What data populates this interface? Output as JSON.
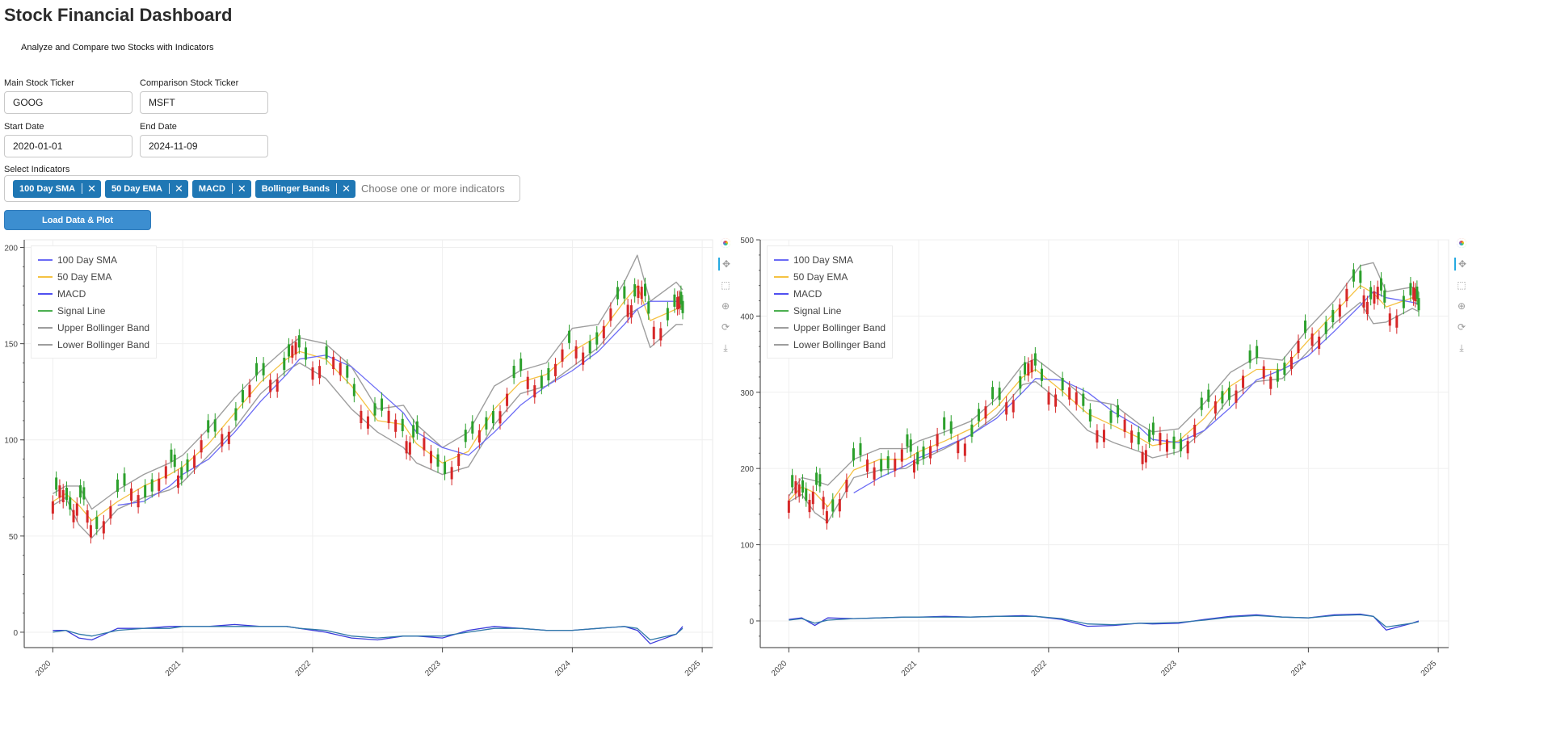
{
  "header": {
    "title": "Stock Financial Dashboard",
    "subtitle": "Analyze and Compare two Stocks with Indicators"
  },
  "form": {
    "main_ticker_label": "Main Stock Ticker",
    "main_ticker_value": "GOOG",
    "comparison_ticker_label": "Comparison Stock Ticker",
    "comparison_ticker_value": "MSFT",
    "start_date_label": "Start Date",
    "start_date_value": "2020-01-01",
    "end_date_label": "End Date",
    "end_date_value": "2024-11-09",
    "indicators_label": "Select Indicators",
    "indicators": [
      "100 Day SMA",
      "50 Day EMA",
      "MACD",
      "Bollinger Bands"
    ],
    "indicators_placeholder": "Choose one or more indicators",
    "load_button_label": "Load Data & Plot"
  },
  "legend_items": [
    {
      "label": "100 Day SMA",
      "color": "#6b6bf5"
    },
    {
      "label": "50 Day EMA",
      "color": "#f5c242"
    },
    {
      "label": "MACD",
      "color": "#5050f0"
    },
    {
      "label": "Signal Line",
      "color": "#4caf50"
    },
    {
      "label": "Upper Bollinger Band",
      "color": "#9e9e9e"
    },
    {
      "label": "Lower Bollinger Band",
      "color": "#9e9e9e"
    }
  ],
  "chart_data": [
    {
      "type": "line",
      "ticker": "GOOG",
      "x": [
        2020.0,
        2020.1,
        2020.2,
        2020.3,
        2020.5,
        2020.7,
        2020.9,
        2021.0,
        2021.2,
        2021.4,
        2021.6,
        2021.8,
        2021.9,
        2022.1,
        2022.3,
        2022.5,
        2022.7,
        2022.8,
        2023.0,
        2023.2,
        2023.4,
        2023.6,
        2023.8,
        2024.0,
        2024.2,
        2024.4,
        2024.5,
        2024.6,
        2024.8,
        2024.85
      ],
      "ylim": [
        -8,
        204
      ],
      "xlim": [
        2019.78,
        2025.08
      ],
      "xticks": [
        "2020",
        "2021",
        "2022",
        "2023",
        "2024",
        "2025"
      ],
      "yticks": [
        "0",
        "50",
        "100",
        "150",
        "200"
      ],
      "series": [
        {
          "name": "Upper Bollinger Band",
          "values": [
            72,
            76,
            76,
            64,
            74,
            82,
            88,
            92,
            106,
            122,
            136,
            148,
            153,
            150,
            138,
            116,
            118,
            108,
            96,
            104,
            128,
            136,
            140,
            158,
            160,
            182,
            196,
            172,
            182,
            178
          ]
        },
        {
          "name": "Lower Bollinger Band",
          "values": [
            66,
            70,
            56,
            49,
            64,
            70,
            74,
            78,
            92,
            106,
            124,
            136,
            140,
            132,
            116,
            104,
            96,
            88,
            82,
            86,
            108,
            124,
            128,
            138,
            148,
            164,
            168,
            148,
            160,
            160
          ]
        },
        {
          "name": "50 Day EMA",
          "values": [
            68,
            72,
            66,
            58,
            68,
            76,
            82,
            86,
            98,
            114,
            130,
            142,
            146,
            142,
            128,
            110,
            108,
            98,
            88,
            94,
            116,
            130,
            134,
            146,
            154,
            172,
            180,
            162,
            168,
            170
          ]
        },
        {
          "name": "100 Day SMA",
          "values": [
            null,
            null,
            null,
            null,
            66,
            68,
            76,
            82,
            90,
            104,
            120,
            134,
            142,
            144,
            138,
            126,
            114,
            104,
            96,
            92,
            104,
            118,
            128,
            136,
            146,
            160,
            168,
            172,
            172,
            170
          ]
        },
        {
          "name": "MACD",
          "values": [
            1,
            1,
            -3,
            -4,
            2,
            2,
            3,
            3,
            3,
            4,
            3,
            3,
            2,
            0,
            -3,
            -4,
            -2,
            -2,
            -3,
            1,
            3,
            2,
            1,
            1,
            2,
            3,
            1,
            -6,
            -1,
            3
          ]
        },
        {
          "name": "Signal Line",
          "values": [
            0,
            1,
            -1,
            -2,
            1,
            2,
            2,
            3,
            3,
            3,
            3,
            3,
            2,
            1,
            -2,
            -3,
            -2,
            -2,
            -2,
            0,
            2,
            2,
            1,
            1,
            2,
            3,
            2,
            -4,
            -1,
            2
          ]
        }
      ]
    },
    {
      "type": "line",
      "ticker": "MSFT",
      "x": [
        2020.0,
        2020.1,
        2020.2,
        2020.3,
        2020.5,
        2020.7,
        2020.9,
        2021.0,
        2021.2,
        2021.4,
        2021.6,
        2021.8,
        2021.9,
        2022.1,
        2022.3,
        2022.5,
        2022.7,
        2022.8,
        2023.0,
        2023.2,
        2023.4,
        2023.6,
        2023.8,
        2024.0,
        2024.2,
        2024.4,
        2024.5,
        2024.6,
        2024.8,
        2024.85
      ],
      "ylim": [
        -35,
        500
      ],
      "xlim": [
        2019.78,
        2025.08
      ],
      "xticks": [
        "2020",
        "2021",
        "2022",
        "2023",
        "2024",
        "2025"
      ],
      "yticks": [
        "0",
        "100",
        "200",
        "300",
        "400",
        "500"
      ],
      "series": [
        {
          "name": "Upper Bollinger Band",
          "values": [
            164,
            188,
            184,
            178,
            212,
            226,
            226,
            236,
            248,
            262,
            292,
            336,
            344,
            318,
            290,
            284,
            258,
            248,
            252,
            286,
            326,
            346,
            342,
            384,
            420,
            466,
            470,
            432,
            438,
            432
          ]
        },
        {
          "name": "Lower Bollinger Band",
          "values": [
            156,
            166,
            142,
            130,
            188,
            198,
            200,
            210,
            226,
            244,
            270,
            310,
            314,
            286,
            250,
            234,
            222,
            214,
            222,
            250,
            294,
            314,
            318,
            354,
            390,
            418,
            390,
            392,
            410,
            406
          ]
        },
        {
          "name": "50 Day EMA",
          "values": [
            158,
            176,
            168,
            150,
            198,
            212,
            212,
            222,
            236,
            252,
            280,
            320,
            330,
            302,
            272,
            256,
            240,
            230,
            236,
            266,
            308,
            330,
            330,
            368,
            404,
            440,
            430,
            412,
            424,
            418
          ]
        },
        {
          "name": "100 Day SMA",
          "values": [
            null,
            null,
            null,
            null,
            168,
            188,
            204,
            214,
            228,
            244,
            266,
            300,
            318,
            316,
            300,
            274,
            254,
            238,
            234,
            250,
            280,
            316,
            330,
            348,
            380,
            414,
            432,
            424,
            418,
            416
          ]
        },
        {
          "name": "MACD",
          "values": [
            2,
            4,
            -6,
            4,
            3,
            4,
            5,
            5,
            6,
            5,
            6,
            7,
            6,
            2,
            -7,
            -6,
            -3,
            -4,
            -3,
            2,
            6,
            8,
            5,
            4,
            8,
            9,
            6,
            -12,
            -3,
            0
          ]
        },
        {
          "name": "Signal Line",
          "values": [
            1,
            3,
            -3,
            1,
            3,
            4,
            5,
            5,
            5,
            5,
            6,
            6,
            6,
            3,
            -4,
            -5,
            -3,
            -3,
            -2,
            1,
            5,
            7,
            5,
            4,
            7,
            8,
            6,
            -8,
            -3,
            -1
          ]
        }
      ]
    }
  ]
}
